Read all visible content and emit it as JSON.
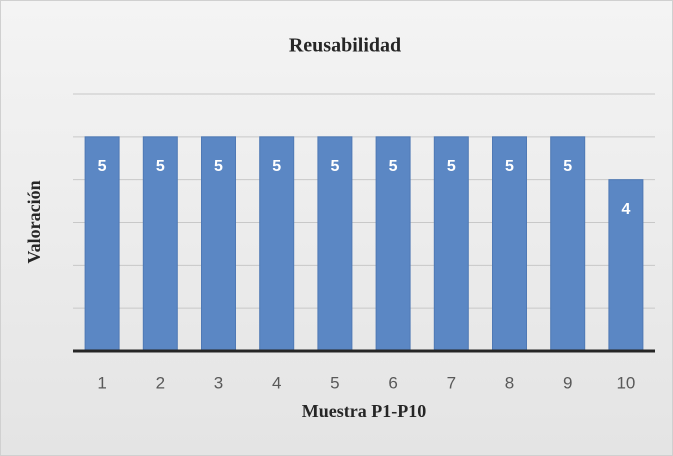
{
  "chart_data": {
    "type": "bar",
    "title": "Reusabilidad",
    "xlabel": "Muestra P1-P10",
    "ylabel": "Valoración",
    "categories": [
      "1",
      "2",
      "3",
      "4",
      "5",
      "6",
      "7",
      "8",
      "9",
      "10"
    ],
    "values": [
      5,
      5,
      5,
      5,
      5,
      5,
      5,
      5,
      5,
      4
    ],
    "color": "#5b87c4",
    "ylim": [
      0,
      6
    ],
    "yticks": [
      0,
      1,
      2,
      3,
      4,
      5,
      6
    ],
    "grid": true
  }
}
